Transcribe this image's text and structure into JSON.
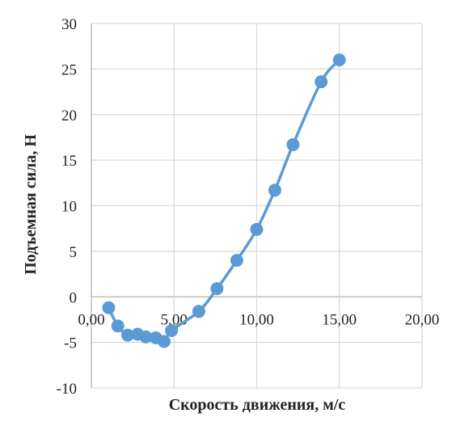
{
  "chart_data": {
    "type": "scatter",
    "title": "",
    "xlabel": "Скорость движения, м/с",
    "ylabel": "Подъемная сила, Н",
    "xlim": [
      0,
      20
    ],
    "ylim": [
      -10,
      30
    ],
    "x_ticks": [
      "0,00",
      "5,00",
      "10,00",
      "15,00",
      "20,00"
    ],
    "y_ticks": [
      "-10",
      "-5",
      "0",
      "5",
      "10",
      "15",
      "20",
      "25",
      "30"
    ],
    "grid": true,
    "legend": "none",
    "color": "#5b9bd5",
    "series": [
      {
        "x": [
          1.05,
          1.6,
          2.2,
          2.8,
          3.3,
          3.9,
          4.4,
          4.85,
          6.5,
          7.6,
          8.8,
          10.0,
          11.1,
          12.2,
          13.9,
          15.0
        ],
        "y": [
          -1.2,
          -3.2,
          -4.2,
          -4.1,
          -4.4,
          -4.5,
          -4.9,
          -3.7,
          -1.6,
          0.9,
          4.0,
          7.4,
          11.7,
          16.7,
          23.6,
          26.0
        ]
      }
    ]
  }
}
